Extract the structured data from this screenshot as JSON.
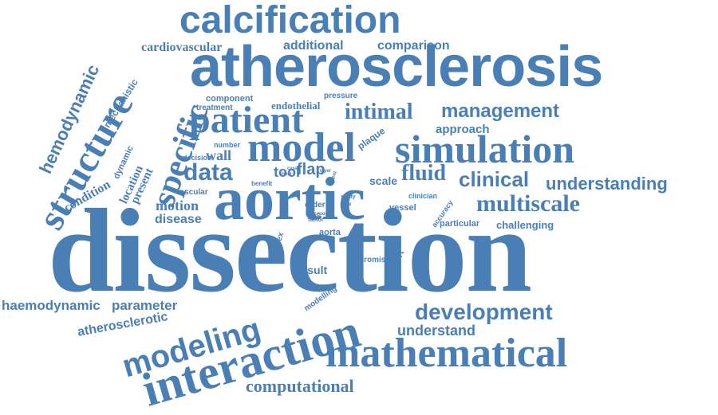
{
  "word_color": "#4a7fb5",
  "words": {
    "dissection": "dissection",
    "atherosclerosis": "atherosclerosis",
    "aortic": "aortic",
    "interaction": "interaction",
    "model": "model",
    "simulation": "simulation",
    "calcification": "calcification",
    "patient": "patient",
    "mathematical": "mathematical",
    "structure": "structure",
    "specific": "specific",
    "modeling": "modeling",
    "multiscale": "multiscale",
    "development": "development",
    "intimal": "intimal",
    "management": "management",
    "fluid": "fluid",
    "clinical": "clinical",
    "understanding": "understanding",
    "data": "data",
    "computational": "computational",
    "hemodynamic": "hemodynamic",
    "wall": "wall",
    "cardiovascular": "cardiovascular",
    "additional": "additional",
    "comparison": "comparison",
    "understand": "understand",
    "haemodynamic": "haemodynamic",
    "parameter": "parameter",
    "atherosclerotic": "atherosclerotic",
    "motion": "motion",
    "disease": "disease",
    "tool": "tool",
    "flap": "flap",
    "scale": "scale",
    "approach": "approach",
    "result": "result",
    "challenging": "challenging",
    "condition": "condition",
    "location": "location",
    "present": "present",
    "dynamic": "dynamic",
    "mechanistic": "mechanistic",
    "component": "component",
    "treatment": "treatment",
    "endothelial": "endothelial",
    "pressure": "pressure",
    "plaque": "plaque",
    "number": "number",
    "decision": "decision",
    "vascular": "vascular",
    "benefit": "benefit",
    "aorta": "aorta",
    "vessel": "vessel",
    "clinician": "clinician",
    "particular": "particular",
    "accuracy": "accuracy",
    "promise": "promise",
    "support": "support",
    "complex": "complex",
    "modelling": "modelling",
    "order": "order",
    "false": "false",
    "type": "type",
    "study": "study",
    "layer": "layer",
    "shear": "shear",
    "case": "case",
    "input": "input",
    "pose": "pose",
    "factor": "factor"
  }
}
